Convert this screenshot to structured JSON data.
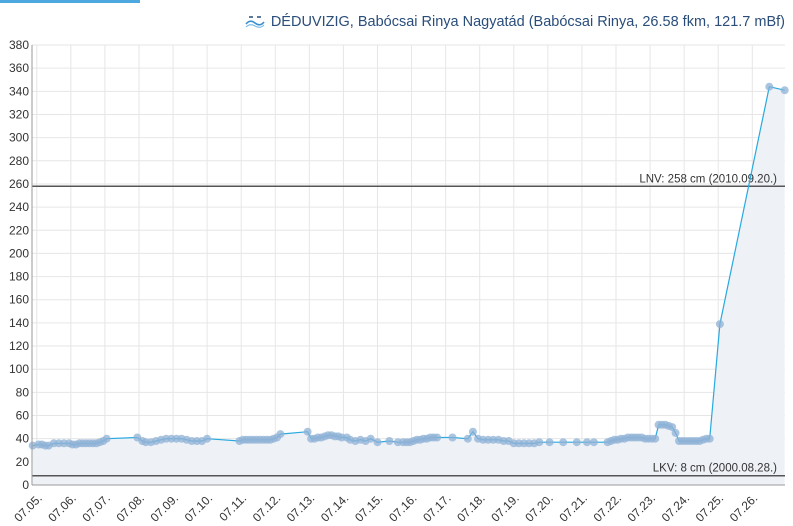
{
  "header": {
    "logo_icon": "vizig-logo-icon",
    "title": "DÉDUVIZIG, Babócsai Rinya Nagyatád (Babócsai Rinya, 26.58 fkm, 121.7 mBf)"
  },
  "colors": {
    "line": "#29a9df",
    "marker": "#8fb2d6",
    "area": "#eef1f6",
    "reference_line": "#555555",
    "grid": "#e6e6e6",
    "title": "#2a4d7a"
  },
  "chart_data": {
    "type": "line",
    "title": "DÉDUVIZIG, Babócsai Rinya Nagyatád (Babócsai Rinya, 26.58 fkm, 121.7 mBf)",
    "xlabel": "",
    "ylabel": "",
    "x_range": [
      4.86,
      26.96
    ],
    "ylim": [
      0,
      380
    ],
    "y_ticks": [
      0,
      20,
      40,
      60,
      80,
      100,
      120,
      140,
      160,
      180,
      200,
      220,
      240,
      260,
      280,
      300,
      320,
      340,
      360,
      380
    ],
    "x_tick_days": [
      5,
      6,
      7,
      8,
      9,
      10,
      11,
      12,
      13,
      14,
      15,
      16,
      17,
      18,
      19,
      20,
      21,
      22,
      23,
      24,
      25,
      26
    ],
    "x_tick_labels": [
      "07.05.",
      "07.06.",
      "07.07.",
      "07.08.",
      "07.09.",
      "07.10.",
      "07.11.",
      "07.12.",
      "07.13.",
      "07.14.",
      "07.15.",
      "07.16.",
      "07.17.",
      "07.18.",
      "07.19.",
      "07.20.",
      "07.21.",
      "07.22.",
      "07.23.",
      "07.24.",
      "07.25.",
      "07.26."
    ],
    "grid": true,
    "legend": "none",
    "reference_lines": [
      {
        "value": 258,
        "label": "LNV: 258 cm (2010.09.20.)"
      },
      {
        "value": 8,
        "label": "LKV: 8 cm (2000.08.28.)"
      }
    ],
    "series": [
      {
        "x_days": [
          4.88,
          5.05,
          5.15,
          5.25,
          5.35,
          5.5,
          5.65,
          5.8,
          5.95,
          6.05,
          6.15,
          6.25,
          6.35,
          6.45,
          6.55,
          6.65,
          6.75,
          6.85,
          6.95,
          7.05,
          7.95,
          8.1,
          8.2,
          8.35,
          8.5,
          8.65,
          8.8,
          8.95,
          9.1,
          9.25,
          9.4,
          9.55,
          9.7,
          9.85,
          10.0,
          10.95,
          11.05,
          11.15,
          11.25,
          11.35,
          11.45,
          11.55,
          11.65,
          11.75,
          11.85,
          11.95,
          12.05,
          12.15,
          12.95,
          13.05,
          13.15,
          13.25,
          13.35,
          13.45,
          13.55,
          13.65,
          13.75,
          13.85,
          13.95,
          14.1,
          14.2,
          14.35,
          14.5,
          14.65,
          14.8,
          15.0,
          15.35,
          15.6,
          15.75,
          15.85,
          15.95,
          16.05,
          16.15,
          16.25,
          16.35,
          16.45,
          16.55,
          16.65,
          16.75,
          17.2,
          17.65,
          17.8,
          17.95,
          18.1,
          18.25,
          18.4,
          18.55,
          18.7,
          18.85,
          19.0,
          19.15,
          19.3,
          19.45,
          19.6,
          19.75,
          20.05,
          20.45,
          20.85,
          21.15,
          21.35,
          21.75,
          21.85,
          21.95,
          22.05,
          22.15,
          22.25,
          22.35,
          22.45,
          22.55,
          22.65,
          22.75,
          22.85,
          22.95,
          23.05,
          23.15,
          23.25,
          23.35,
          23.45,
          23.55,
          23.65,
          23.75,
          23.85,
          23.95,
          24.05,
          24.15,
          24.25,
          24.35,
          24.45,
          24.55,
          24.65,
          24.75,
          25.05,
          26.5,
          26.95
        ],
        "values": [
          34,
          35,
          35,
          34,
          34,
          36,
          36,
          36,
          36,
          35,
          35,
          36,
          36,
          36,
          36,
          36,
          36,
          37,
          38,
          40,
          41,
          38,
          37,
          37,
          38,
          39,
          40,
          40,
          40,
          40,
          39,
          38,
          38,
          38,
          40,
          38,
          39,
          39,
          39,
          39,
          39,
          39,
          39,
          39,
          39,
          40,
          41,
          44,
          46,
          40,
          40,
          41,
          41,
          42,
          43,
          43,
          42,
          42,
          41,
          41,
          39,
          38,
          39,
          38,
          40,
          37,
          38,
          37,
          37,
          37,
          37,
          38,
          39,
          39,
          40,
          40,
          41,
          41,
          41,
          41,
          40,
          46,
          40,
          39,
          39,
          39,
          39,
          38,
          38,
          36,
          36,
          36,
          36,
          36,
          37,
          37,
          37,
          37,
          37,
          37,
          37,
          38,
          39,
          39,
          40,
          40,
          41,
          41,
          41,
          41,
          41,
          40,
          40,
          40,
          40,
          52,
          52,
          52,
          51,
          50,
          45,
          38,
          38,
          38,
          38,
          38,
          38,
          38,
          39,
          40,
          40,
          139,
          344,
          341
        ]
      }
    ]
  }
}
